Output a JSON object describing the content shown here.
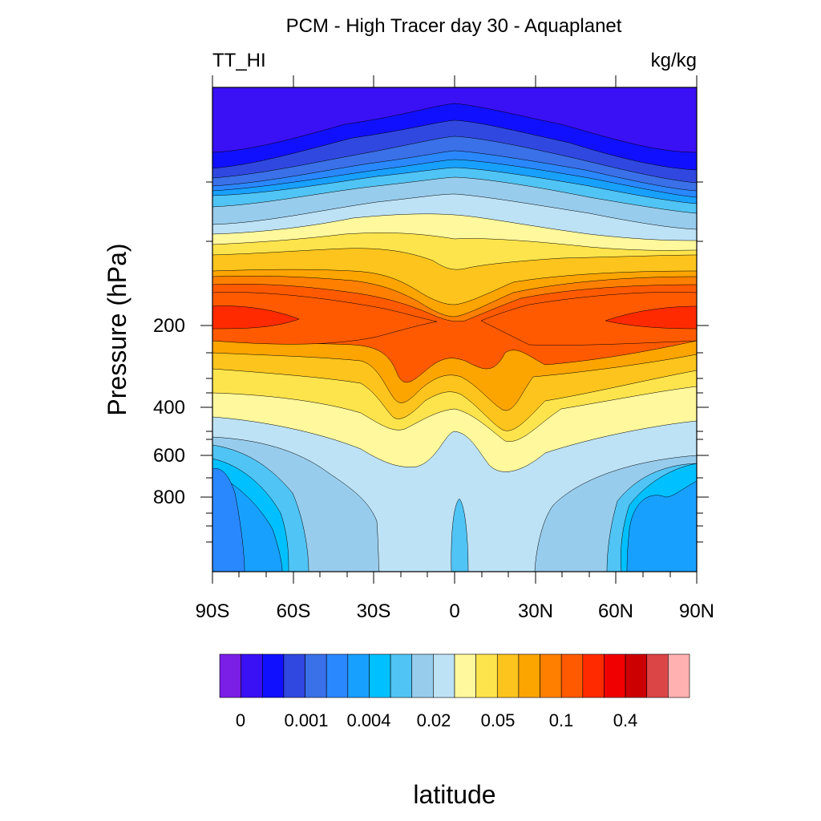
{
  "chart_data": {
    "type": "heatmap",
    "title": "PCM - High Tracer day 30 - Aquaplanet",
    "left_subtitle": "TT_HI",
    "right_subtitle": "kg/kg",
    "ylabel": "Pressure (hPa)",
    "xlabel": "latitude",
    "x_ticks": [
      "90S",
      "60S",
      "30S",
      "0",
      "30N",
      "60N",
      "90N"
    ],
    "x_values": [
      -90,
      -60,
      -30,
      0,
      30,
      60,
      90
    ],
    "y_ticks": [
      "200",
      "400",
      "600",
      "800"
    ],
    "y_values": [
      200,
      400,
      600,
      800
    ],
    "colorbar_labels": [
      "0",
      "0.001",
      "0.004",
      "0.02",
      "0.05",
      "0.1",
      "0.4"
    ],
    "colorbar_colors": [
      "#7b1ee6",
      "#3a10f5",
      "#1010ff",
      "#3048e0",
      "#3a70e8",
      "#2a88ff",
      "#18a0ff",
      "#00c0ff",
      "#50c4f4",
      "#98ccec",
      "#bde2f6",
      "#fff89c",
      "#fde44c",
      "#fcc41c",
      "#fca400",
      "#ff8000",
      "#ff5a00",
      "#ff2a00",
      "#f00000",
      "#cc0000",
      "#dc4545",
      "#ffb0b0"
    ]
  }
}
